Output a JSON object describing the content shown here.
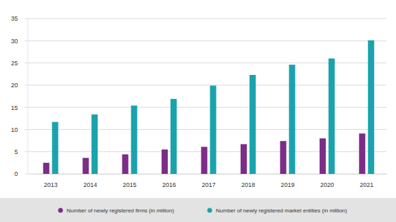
{
  "chart_data": {
    "type": "bar",
    "categories": [
      "2013",
      "2014",
      "2015",
      "2016",
      "2017",
      "2018",
      "2019",
      "2020",
      "2021"
    ],
    "series": [
      {
        "name": "Number of newly registered firms (in million)",
        "color": "#7b2d87",
        "values": [
          2.5,
          3.6,
          4.4,
          5.5,
          6.1,
          6.7,
          7.4,
          8.0,
          9.1
        ]
      },
      {
        "name": "Number of newly registered market entities (in million)",
        "color": "#1ba3ad",
        "values": [
          11.7,
          13.4,
          15.4,
          16.9,
          19.9,
          22.3,
          24.6,
          26.0,
          30.1
        ]
      }
    ],
    "ylim": [
      0,
      35
    ],
    "yticks": [
      0,
      5,
      10,
      15,
      20,
      25,
      30,
      35
    ],
    "grid": true,
    "legend": "bottom"
  }
}
